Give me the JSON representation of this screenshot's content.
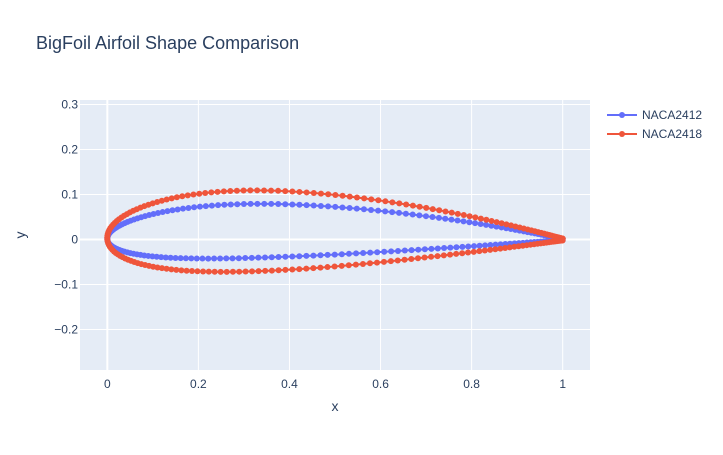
{
  "chart_data": {
    "type": "line",
    "title": "BigFoil Airfoil Shape Comparison",
    "xlabel": "x",
    "ylabel": "y",
    "xlim": [
      -0.06,
      1.06
    ],
    "ylim": [
      -0.29,
      0.31
    ],
    "x_ticks": [
      0,
      0.2,
      0.4,
      0.6,
      0.8,
      1
    ],
    "x_tick_labels": [
      "0",
      "0.2",
      "0.4",
      "0.6",
      "0.8",
      "1"
    ],
    "y_ticks": [
      -0.2,
      -0.1,
      0,
      0.1,
      0.2,
      0.3
    ],
    "y_tick_labels": [
      "−0.2",
      "−0.1",
      "0",
      "0.1",
      "0.2",
      "0.3"
    ],
    "grid": true,
    "legend_position": "top-right",
    "series": [
      {
        "name": "NACA2412",
        "color": "#636efa",
        "mode": "lines+markers",
        "camber_m": 0.02,
        "camber_p": 0.4,
        "thickness_t": 0.12,
        "points_per_surface": 100
      },
      {
        "name": "NACA2418",
        "color": "#ef553b",
        "mode": "lines+markers",
        "camber_m": 0.02,
        "camber_p": 0.4,
        "thickness_t": 0.18,
        "points_per_surface": 100
      }
    ]
  },
  "style": {
    "plot_bg": "#e5ecf6",
    "grid_color": "#ffffff",
    "text_color": "#2a3f5f"
  }
}
